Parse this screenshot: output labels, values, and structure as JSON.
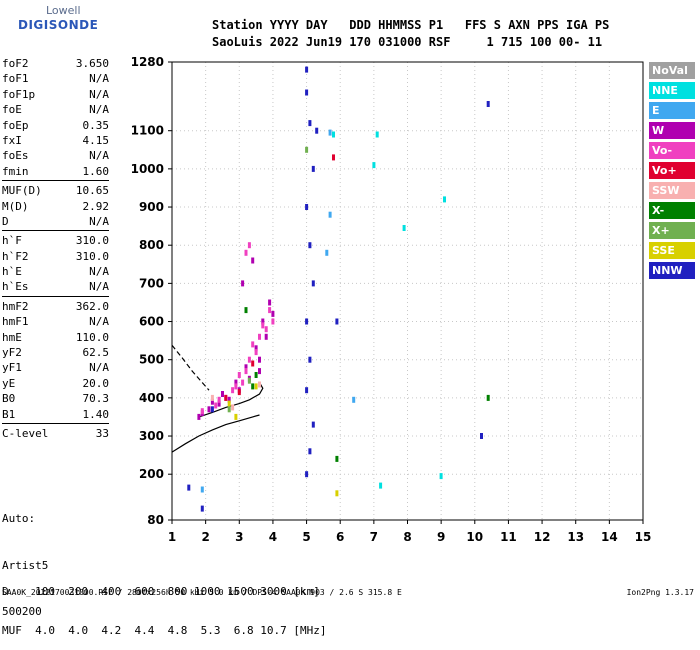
{
  "logo": {
    "line1": "Lowell",
    "line2": "DIGISONDE"
  },
  "header": {
    "line1": "Station YYYY DAY   DDD HHMMSS P1   FFS S AXN PPS IGA PS",
    "line2": "SaoLuis 2022 Jun19 170 031000 RSF     1 715 100 00- 11"
  },
  "params": [
    [
      {
        "k": "foF2",
        "v": "3.650"
      },
      {
        "k": "foF1",
        "v": "N/A"
      },
      {
        "k": "foF1p",
        "v": "N/A"
      },
      {
        "k": "foE",
        "v": "N/A"
      },
      {
        "k": "foEp",
        "v": "0.35"
      },
      {
        "k": "fxI",
        "v": "4.15"
      },
      {
        "k": "foEs",
        "v": "N/A"
      },
      {
        "k": "fmin",
        "v": "1.60"
      }
    ],
    [
      {
        "k": "MUF(D)",
        "v": "10.65"
      },
      {
        "k": "M(D)",
        "v": "2.92"
      },
      {
        "k": "D",
        "v": "N/A"
      }
    ],
    [
      {
        "k": "h`F",
        "v": "310.0"
      },
      {
        "k": "h`F2",
        "v": "310.0"
      },
      {
        "k": "h`E",
        "v": "N/A"
      },
      {
        "k": "h`Es",
        "v": "N/A"
      }
    ],
    [
      {
        "k": "hmF2",
        "v": "362.0"
      },
      {
        "k": "hmF1",
        "v": "N/A"
      },
      {
        "k": "hmE",
        "v": "110.0"
      },
      {
        "k": "yF2",
        "v": "62.5"
      },
      {
        "k": "yF1",
        "v": "N/A"
      },
      {
        "k": "yE",
        "v": "20.0"
      },
      {
        "k": "B0",
        "v": "70.3"
      },
      {
        "k": "B1",
        "v": "1.40"
      }
    ],
    [
      {
        "k": "C-level",
        "v": "33"
      }
    ]
  ],
  "auto": {
    "l1": "Auto:",
    "l2": "Artist5",
    "l3": "500200"
  },
  "table": {
    "row1": "D    100  200  400  600  800 1000 1500 3000 [km]",
    "row2": "MUF  4.0  4.0  4.2  4.4  4.8  5.3  6.8 10.7 [MHz]"
  },
  "footer": {
    "left": "SAA0K_2022170031000.RSF / 280fx256h 50 kHz 5.0 km / DPS-4 SAA0K 903 / 2.6 S 315.8 E",
    "right": "Ion2Png 1.3.17"
  },
  "legend": [
    {
      "label": "NoVal",
      "color": "#a0a0a0"
    },
    {
      "label": "NNE",
      "color": "#00e0e0"
    },
    {
      "label": "E",
      "color": "#40a8f0"
    },
    {
      "label": "W",
      "color": "#b000b0"
    },
    {
      "label": "Vo-",
      "color": "#f040c0"
    },
    {
      "label": "Vo+",
      "color": "#e00030"
    },
    {
      "label": "SSW",
      "color": "#f8b0b0"
    },
    {
      "label": "X-",
      "color": "#008000"
    },
    {
      "label": "X+",
      "color": "#70b050"
    },
    {
      "label": "SSE",
      "color": "#d8d000"
    },
    {
      "label": "NNW",
      "color": "#2020c0"
    }
  ],
  "chart_data": {
    "type": "scatter",
    "x_ticks": [
      "1",
      "2",
      "3",
      "4",
      "5",
      "6",
      "7",
      "8",
      "9",
      "10",
      "11",
      "12",
      "13",
      "14",
      "15"
    ],
    "y_ticks": [
      "80",
      "200",
      "300",
      "400",
      "500",
      "600",
      "700",
      "800",
      "900",
      "1000",
      "1100",
      "1280"
    ],
    "xlim": [
      1,
      15
    ],
    "ylim": [
      80,
      1280
    ],
    "grid": true,
    "series": [
      {
        "name": "W",
        "color": "#b000b0",
        "points": [
          [
            1.8,
            350
          ],
          [
            2.1,
            370
          ],
          [
            2.4,
            385
          ],
          [
            2.7,
            395
          ],
          [
            3.0,
            420
          ],
          [
            3.3,
            450
          ],
          [
            3.6,
            500
          ],
          [
            3.8,
            560
          ],
          [
            4.0,
            620
          ],
          [
            2.9,
            440
          ],
          [
            3.2,
            480
          ],
          [
            3.5,
            530
          ],
          [
            3.7,
            600
          ],
          [
            3.1,
            700
          ],
          [
            3.4,
            760
          ],
          [
            2.5,
            410
          ],
          [
            2.2,
            390
          ],
          [
            1.9,
            360
          ],
          [
            3.9,
            650
          ],
          [
            3.6,
            470
          ]
        ]
      },
      {
        "name": "Vo-",
        "color": "#f040c0",
        "points": [
          [
            1.9,
            365
          ],
          [
            2.3,
            380
          ],
          [
            2.6,
            400
          ],
          [
            2.9,
            430
          ],
          [
            3.2,
            470
          ],
          [
            3.5,
            520
          ],
          [
            3.8,
            580
          ],
          [
            4.0,
            600
          ],
          [
            3.0,
            460
          ],
          [
            3.3,
            500
          ],
          [
            3.6,
            560
          ],
          [
            2.8,
            420
          ],
          [
            3.4,
            540
          ],
          [
            3.7,
            590
          ],
          [
            2.4,
            395
          ],
          [
            3.1,
            440
          ],
          [
            3.9,
            630
          ],
          [
            3.2,
            780
          ],
          [
            3.3,
            800
          ]
        ]
      },
      {
        "name": "NNW",
        "color": "#2020c0",
        "points": [
          [
            5.0,
            1260
          ],
          [
            5.0,
            1200
          ],
          [
            5.1,
            1120
          ],
          [
            5.2,
            1000
          ],
          [
            5.0,
            900
          ],
          [
            5.1,
            800
          ],
          [
            5.2,
            700
          ],
          [
            5.0,
            600
          ],
          [
            5.1,
            500
          ],
          [
            5.0,
            420
          ],
          [
            5.2,
            330
          ],
          [
            5.1,
            260
          ],
          [
            5.0,
            200
          ],
          [
            5.3,
            1100
          ],
          [
            10.4,
            1170
          ],
          [
            10.2,
            300
          ],
          [
            1.5,
            165
          ],
          [
            1.9,
            110
          ],
          [
            2.2,
            370
          ],
          [
            5.9,
            600
          ]
        ]
      },
      {
        "name": "NNE",
        "color": "#00e0e0",
        "points": [
          [
            7.0,
            1010
          ],
          [
            7.1,
            1090
          ],
          [
            7.9,
            845
          ],
          [
            9.1,
            920
          ],
          [
            9.0,
            195
          ],
          [
            7.2,
            170
          ],
          [
            5.8,
            1090
          ]
        ]
      },
      {
        "name": "E",
        "color": "#40a8f0",
        "points": [
          [
            5.7,
            1095
          ],
          [
            5.7,
            880
          ],
          [
            6.4,
            395
          ],
          [
            1.9,
            160
          ],
          [
            5.6,
            780
          ]
        ]
      },
      {
        "name": "X-",
        "color": "#008000",
        "points": [
          [
            3.4,
            430
          ],
          [
            3.2,
            630
          ],
          [
            3.5,
            460
          ],
          [
            10.4,
            400
          ],
          [
            5.9,
            240
          ]
        ]
      },
      {
        "name": "SSE",
        "color": "#d8d000",
        "points": [
          [
            2.7,
            385
          ],
          [
            3.5,
            430
          ],
          [
            2.9,
            350
          ],
          [
            5.9,
            150
          ]
        ]
      },
      {
        "name": "Vo+",
        "color": "#e00030",
        "points": [
          [
            3.0,
            415
          ],
          [
            2.6,
            400
          ],
          [
            5.8,
            1030
          ],
          [
            3.4,
            490
          ]
        ]
      },
      {
        "name": "SSW",
        "color": "#f8b0b0",
        "points": [
          [
            2.2,
            400
          ],
          [
            2.8,
            375
          ],
          [
            3.6,
            435
          ]
        ]
      },
      {
        "name": "X+",
        "color": "#70b050",
        "points": [
          [
            3.3,
            445
          ],
          [
            5.0,
            1050
          ],
          [
            2.7,
            370
          ]
        ]
      }
    ],
    "curves": [
      {
        "style": "solid",
        "points": [
          [
            1.0,
            258
          ],
          [
            1.4,
            280
          ],
          [
            1.8,
            300
          ],
          [
            2.2,
            316
          ],
          [
            2.6,
            330
          ],
          [
            3.0,
            340
          ],
          [
            3.4,
            350
          ],
          [
            3.6,
            355
          ]
        ]
      },
      {
        "style": "solid",
        "points": [
          [
            1.8,
            350
          ],
          [
            2.2,
            362
          ],
          [
            2.6,
            375
          ],
          [
            3.0,
            385
          ],
          [
            3.3,
            395
          ],
          [
            3.6,
            410
          ],
          [
            3.7,
            425
          ],
          [
            3.6,
            440
          ]
        ]
      },
      {
        "style": "dashed",
        "points": [
          [
            1.0,
            538
          ],
          [
            1.3,
            505
          ],
          [
            1.6,
            470
          ],
          [
            1.9,
            440
          ],
          [
            2.1,
            420
          ]
        ]
      }
    ]
  }
}
